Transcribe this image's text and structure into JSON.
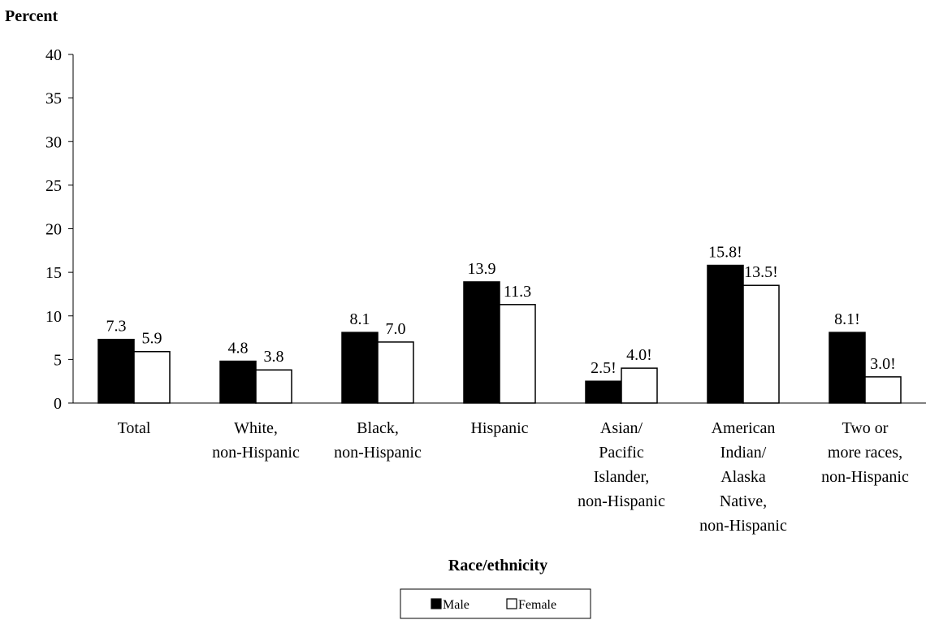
{
  "chart_data": {
    "type": "bar",
    "ylabel": "Percent",
    "xlabel": "Race/ethnicity",
    "ylim": [
      0,
      40
    ],
    "yticks": [
      0,
      5,
      10,
      15,
      20,
      25,
      30,
      35,
      40
    ],
    "grid": false,
    "legend_position": "bottom-center",
    "categories": [
      [
        "Total"
      ],
      [
        "White,",
        "non-Hispanic"
      ],
      [
        "Black,",
        "non-Hispanic"
      ],
      [
        "Hispanic"
      ],
      [
        "Asian/",
        "Pacific",
        "Islander,",
        "non-Hispanic"
      ],
      [
        "American",
        "Indian/",
        "Alaska",
        "Native,",
        "non-Hispanic"
      ],
      [
        "Two or",
        "more races,",
        "non-Hispanic"
      ]
    ],
    "series": [
      {
        "name": "Male",
        "color": "#000000",
        "values": [
          7.3,
          4.8,
          8.1,
          13.9,
          2.5,
          15.8,
          8.1
        ],
        "labels": [
          "7.3",
          "4.8",
          "8.1",
          "13.9",
          "2.5!",
          "15.8!",
          "8.1!"
        ]
      },
      {
        "name": "Female",
        "color": "#ffffff",
        "values": [
          5.9,
          3.8,
          7.0,
          11.3,
          4.0,
          13.5,
          3.0
        ],
        "labels": [
          "5.9",
          "3.8",
          "7.0",
          "11.3",
          "4.0!",
          "13.5!",
          "3.0!"
        ]
      }
    ]
  }
}
